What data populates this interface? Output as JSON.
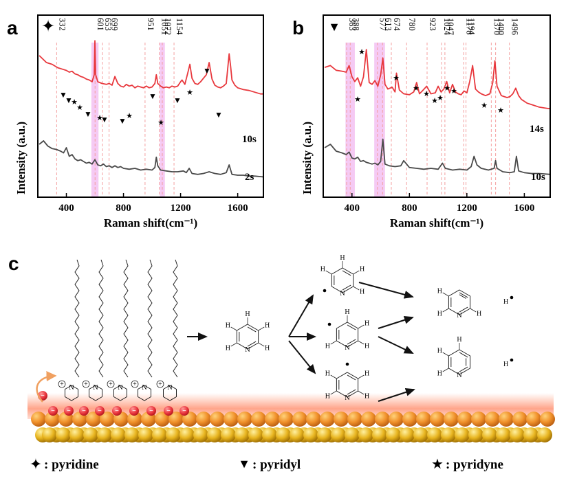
{
  "figure": {
    "panels": [
      "a",
      "b",
      "c"
    ]
  },
  "chart_data": [
    {
      "id": "a",
      "type": "line",
      "title": "",
      "xlabel": "Raman shift(cm⁻¹)",
      "ylabel": "Intensity (a.u.)",
      "xlim": [
        200,
        1780
      ],
      "ylim": [
        0,
        1
      ],
      "x_ticks": [
        400,
        800,
        1200,
        1600
      ],
      "legend_symbol": "✦",
      "peak_labels": [
        "332",
        "601",
        "653",
        "699",
        "951",
        "1051",
        "1072",
        "1154"
      ],
      "peak_positions": [
        332,
        601,
        653,
        699,
        951,
        1051,
        1072,
        1154
      ],
      "highlight_bands": [
        [
          575,
          625
        ],
        [
          1055,
          1090
        ]
      ],
      "series": [
        {
          "name": "10s",
          "color": "#e8383d",
          "x": [
            210,
            260,
            300,
            340,
            380,
            400,
            420,
            440,
            460,
            480,
            500,
            520,
            540,
            560,
            580,
            595,
            600,
            605,
            620,
            650,
            680,
            700,
            720,
            740,
            760,
            780,
            800,
            820,
            840,
            860,
            880,
            900,
            920,
            940,
            960,
            980,
            1000,
            1020,
            1030,
            1040,
            1060,
            1080,
            1100,
            1120,
            1140,
            1160,
            1180,
            1200,
            1210,
            1230,
            1250,
            1265,
            1280,
            1300,
            1320,
            1340,
            1360,
            1380,
            1400,
            1420,
            1440,
            1460,
            1480,
            1500,
            1520,
            1540,
            1550,
            1560,
            1580,
            1600,
            1640,
            1680,
            1720,
            1760,
            1780
          ],
          "y": [
            0.82,
            0.74,
            0.72,
            0.68,
            0.66,
            0.65,
            0.63,
            0.64,
            0.61,
            0.6,
            0.58,
            0.57,
            0.55,
            0.54,
            0.52,
            0.6,
            0.99,
            0.6,
            0.52,
            0.5,
            0.49,
            0.5,
            0.48,
            0.58,
            0.5,
            0.47,
            0.46,
            0.49,
            0.47,
            0.48,
            0.45,
            0.47,
            0.46,
            0.45,
            0.47,
            0.45,
            0.46,
            0.5,
            0.6,
            0.5,
            0.47,
            0.45,
            0.46,
            0.45,
            0.47,
            0.46,
            0.47,
            0.52,
            0.54,
            0.49,
            0.62,
            0.72,
            0.56,
            0.5,
            0.49,
            0.52,
            0.56,
            0.6,
            0.74,
            0.55,
            0.48,
            0.46,
            0.45,
            0.47,
            0.5,
            0.84,
            0.7,
            0.54,
            0.48,
            0.45,
            0.43,
            0.42,
            0.4,
            0.38,
            0.38
          ]
        },
        {
          "name": "2s",
          "color": "#4a4a4a",
          "x": [
            210,
            240,
            270,
            300,
            330,
            360,
            380,
            400,
            420,
            440,
            460,
            480,
            500,
            520,
            540,
            560,
            580,
            600,
            620,
            640,
            660,
            680,
            700,
            720,
            740,
            760,
            780,
            800,
            840,
            880,
            920,
            960,
            1000,
            1020,
            1030,
            1040,
            1060,
            1100,
            1140,
            1180,
            1220,
            1240,
            1260,
            1280,
            1320,
            1360,
            1400,
            1440,
            1480,
            1520,
            1540,
            1560,
            1600,
            1640,
            1680,
            1720,
            1780
          ],
          "y": [
            0.52,
            0.56,
            0.5,
            0.47,
            0.46,
            0.44,
            0.42,
            0.48,
            0.38,
            0.4,
            0.35,
            0.33,
            0.34,
            0.32,
            0.3,
            0.31,
            0.29,
            0.34,
            0.28,
            0.27,
            0.29,
            0.26,
            0.27,
            0.25,
            0.27,
            0.25,
            0.26,
            0.24,
            0.23,
            0.24,
            0.22,
            0.23,
            0.22,
            0.25,
            0.37,
            0.27,
            0.22,
            0.21,
            0.2,
            0.2,
            0.21,
            0.19,
            0.24,
            0.18,
            0.17,
            0.18,
            0.2,
            0.18,
            0.17,
            0.19,
            0.28,
            0.17,
            0.16,
            0.16,
            0.15,
            0.15,
            0.14
          ]
        }
      ],
      "trace_labels": [
        "10s",
        "2s"
      ]
    },
    {
      "id": "b",
      "type": "line",
      "title": "",
      "xlabel": "Raman shift(cm⁻¹)",
      "ylabel": "Intensity (a.u.)",
      "xlim": [
        200,
        1780
      ],
      "ylim": [
        0,
        1
      ],
      "x_ticks": [
        400,
        800,
        1200,
        1600
      ],
      "legend_symbol": "▼",
      "peak_labels": [
        "363",
        "388",
        "577",
        "613",
        "674",
        "780",
        "923",
        "1024",
        "1047",
        "1178",
        "1194",
        "1370",
        "1400",
        "1496"
      ],
      "peak_positions": [
        363,
        388,
        577,
        613,
        674,
        780,
        923,
        1024,
        1047,
        1178,
        1194,
        1370,
        1400,
        1496
      ],
      "highlight_bands": [
        [
          355,
          420
        ],
        [
          555,
          630
        ]
      ],
      "series": [
        {
          "name": "14s",
          "color": "#e8383d",
          "x": [
            210,
            250,
            290,
            330,
            360,
            380,
            400,
            420,
            440,
            460,
            480,
            500,
            520,
            540,
            560,
            580,
            600,
            615,
            630,
            650,
            680,
            700,
            710,
            730,
            760,
            800,
            830,
            850,
            870,
            890,
            920,
            950,
            980,
            1000,
            1020,
            1040,
            1060,
            1080,
            1100,
            1120,
            1140,
            1160,
            1180,
            1200,
            1220,
            1240,
            1260,
            1280,
            1300,
            1330,
            1360,
            1380,
            1395,
            1410,
            1440,
            1460,
            1480,
            1500,
            1520,
            1540,
            1560,
            1580,
            1620,
            1660,
            1700,
            1740,
            1780
          ],
          "y": [
            0.78,
            0.8,
            0.75,
            0.74,
            0.73,
            0.8,
            0.68,
            0.63,
            0.67,
            0.58,
            0.68,
            0.97,
            0.62,
            0.6,
            0.64,
            0.58,
            0.7,
            0.88,
            0.6,
            0.55,
            0.57,
            0.52,
            0.72,
            0.54,
            0.5,
            0.49,
            0.52,
            0.62,
            0.5,
            0.53,
            0.58,
            0.5,
            0.51,
            0.58,
            0.52,
            0.55,
            0.63,
            0.51,
            0.6,
            0.52,
            0.5,
            0.49,
            0.53,
            0.51,
            0.63,
            0.8,
            0.55,
            0.52,
            0.5,
            0.48,
            0.5,
            0.62,
            0.85,
            0.58,
            0.48,
            0.47,
            0.46,
            0.47,
            0.5,
            0.56,
            0.48,
            0.44,
            0.4,
            0.38,
            0.36,
            0.35,
            0.34
          ]
        },
        {
          "name": "10s",
          "color": "#4a4a4a",
          "x": [
            210,
            250,
            290,
            330,
            360,
            380,
            400,
            420,
            440,
            460,
            480,
            500,
            520,
            540,
            560,
            580,
            600,
            615,
            630,
            660,
            700,
            740,
            760,
            800,
            850,
            900,
            950,
            1000,
            1030,
            1050,
            1100,
            1150,
            1200,
            1230,
            1250,
            1270,
            1300,
            1350,
            1390,
            1400,
            1410,
            1450,
            1500,
            1530,
            1545,
            1560,
            1600,
            1650,
            1700,
            1780
          ],
          "y": [
            0.48,
            0.52,
            0.44,
            0.42,
            0.4,
            0.43,
            0.36,
            0.35,
            0.37,
            0.32,
            0.33,
            0.31,
            0.3,
            0.29,
            0.3,
            0.28,
            0.32,
            0.58,
            0.29,
            0.27,
            0.26,
            0.27,
            0.33,
            0.25,
            0.24,
            0.23,
            0.24,
            0.23,
            0.3,
            0.24,
            0.22,
            0.23,
            0.22,
            0.26,
            0.38,
            0.28,
            0.24,
            0.22,
            0.24,
            0.33,
            0.24,
            0.2,
            0.19,
            0.2,
            0.38,
            0.21,
            0.19,
            0.18,
            0.18,
            0.17
          ]
        }
      ],
      "trace_labels": [
        "14s",
        "10s"
      ]
    }
  ],
  "scheme": {
    "atoms": {
      "H": "H",
      "N": "N"
    },
    "charge_symbol": "+",
    "electron_symbol": "−",
    "radical_symbol": "•",
    "h_radical_label": "H"
  },
  "legend": [
    {
      "symbol": "✦",
      "label": ": pyridine"
    },
    {
      "symbol": "▼",
      "label": ": pyridyl"
    },
    {
      "symbol": "★",
      "label": ": pyridyne"
    }
  ],
  "colors": {
    "red_trace": "#e8383d",
    "gray_trace": "#4a4a4a",
    "highlight": "#f2b8f0",
    "guide": "#f4a0a0",
    "gold": "#e8a020",
    "orange_ball": "#f0902a",
    "electron": "#e8323a"
  }
}
